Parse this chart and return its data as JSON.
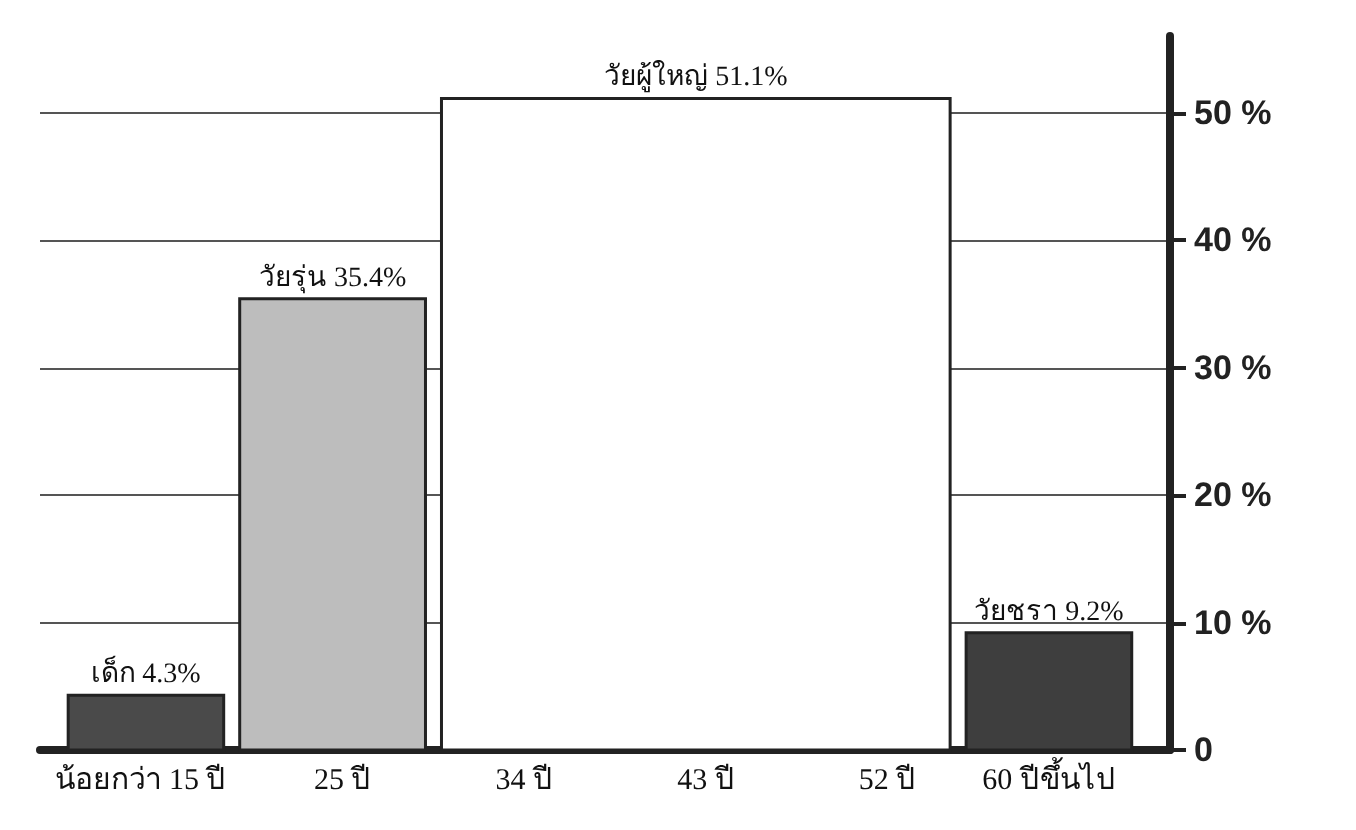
{
  "chart_data": {
    "type": "histogram",
    "bins": [
      11,
      19.5,
      29.5,
      55.5,
      64.5
    ],
    "values": [
      4.3,
      35.4,
      51.1,
      9.2
    ],
    "colors": [
      "#4a4a4a",
      "#bdbdbd",
      "#ffffff",
      "#3e3e3e"
    ],
    "value_labels": [
      "เด็ก 4.3%",
      "วัยรุ่น 35.4%",
      "วัยผู้ใหญ่ 51.1%",
      "วัยชรา 9.2%"
    ],
    "xlim": [
      10,
      66
    ],
    "xticks": [
      {
        "value": 15,
        "label": "น้อยกว่า 15 ปี"
      },
      {
        "value": 25,
        "label": "25 ปี"
      },
      {
        "value": 34,
        "label": "34 ปี"
      },
      {
        "value": 43,
        "label": "43 ปี"
      },
      {
        "value": 52,
        "label": "52 ปี"
      },
      {
        "value": 60,
        "label": "60 ปีขึ้นไป"
      }
    ],
    "ylim": [
      0,
      56
    ],
    "yticks": [
      0,
      {
        "value": 10,
        "label": "10 %"
      },
      {
        "value": 20,
        "label": "20 %"
      },
      {
        "value": 30,
        "label": "30 %"
      },
      {
        "value": 40,
        "label": "40 %"
      },
      {
        "value": 50,
        "label": "50 %"
      }
    ],
    "grid": "y"
  }
}
